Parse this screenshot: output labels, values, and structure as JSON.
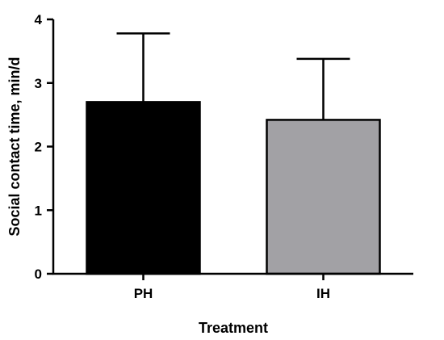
{
  "chart_data": {
    "type": "bar",
    "title": "",
    "xlabel": "Treatment",
    "ylabel": "Social contact time, min/d",
    "categories": [
      "PH",
      "IH"
    ],
    "values": [
      2.7,
      2.42
    ],
    "error_upper": [
      3.78,
      3.38
    ],
    "bar_colors": [
      "#000000",
      "#a2a1a5"
    ],
    "ylim": [
      0,
      4
    ],
    "yticks": [
      "0",
      "1",
      "2",
      "3",
      "4"
    ],
    "grid": false,
    "legend": "none"
  }
}
